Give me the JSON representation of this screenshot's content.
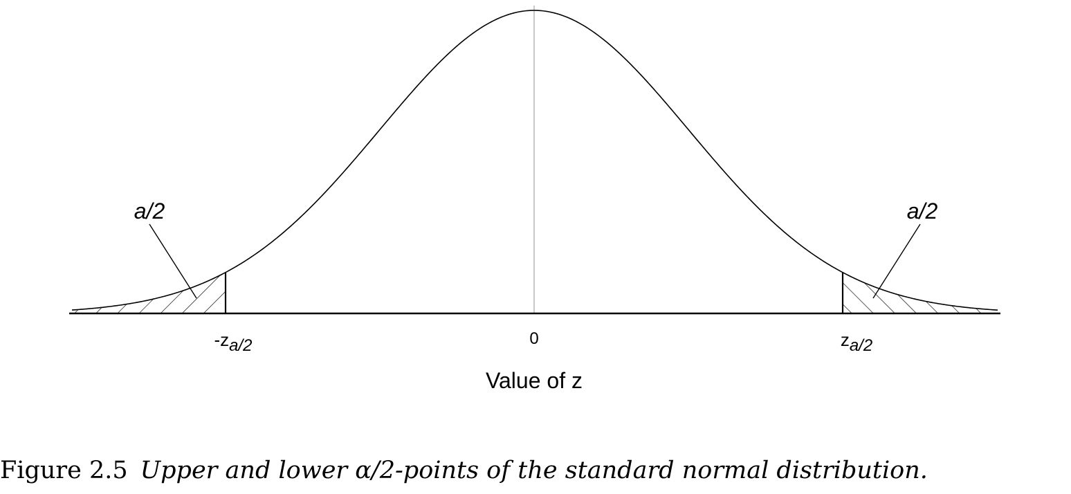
{
  "diagram": {
    "tail_labels": {
      "left": "a/2",
      "right": "a/2"
    },
    "tick_labels": {
      "left_z": "-z",
      "left_sub": "a/2",
      "center": "0",
      "right_z": "z",
      "right_sub": "a/2"
    },
    "xlabel": "Value of z"
  },
  "caption": {
    "label": "Figure 2.5",
    "text": "Upper and lower α/2-points of the standard normal distribution."
  }
}
